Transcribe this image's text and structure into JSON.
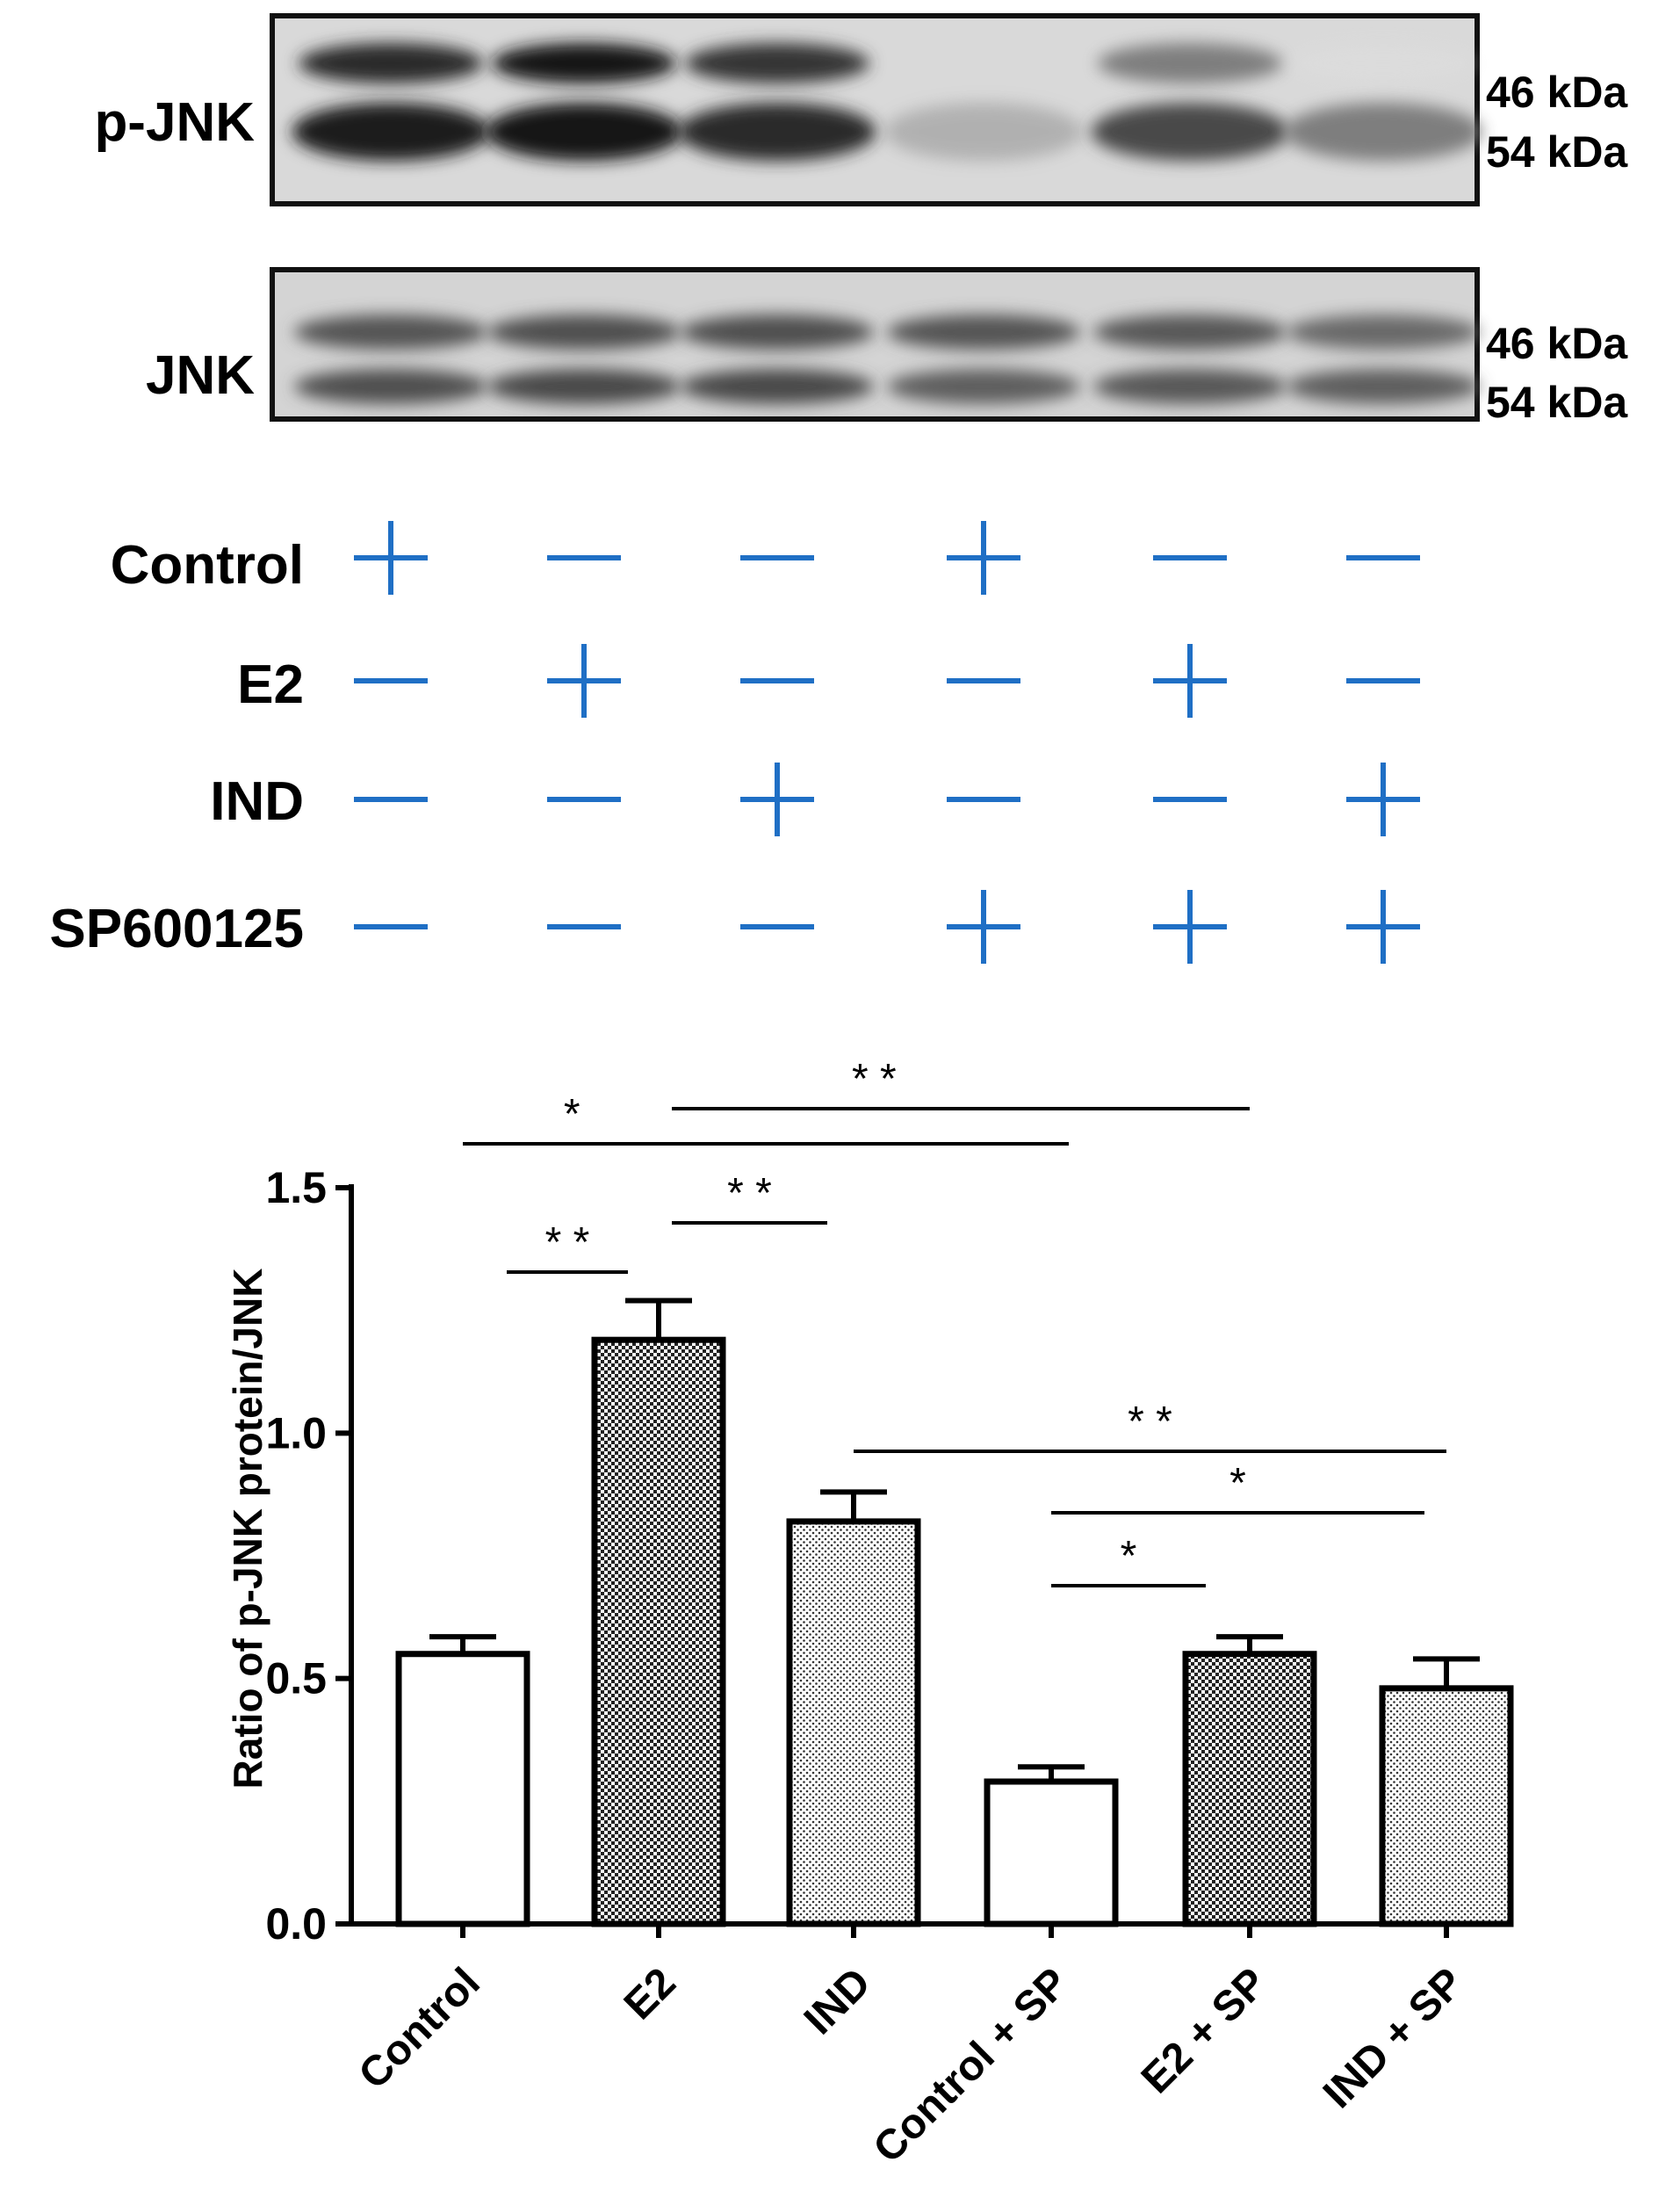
{
  "blot": {
    "panels": [
      {
        "label": "p-JNK",
        "markers": [
          "46 kDa",
          "54 kDa"
        ]
      },
      {
        "label": "JNK",
        "markers": [
          "46 kDa",
          "54 kDa"
        ]
      }
    ],
    "treatments": [
      {
        "label": "Control",
        "signs": [
          "+",
          "−",
          "−",
          "+",
          "−",
          "−"
        ]
      },
      {
        "label": "E2",
        "signs": [
          "−",
          "+",
          "−",
          "−",
          "+",
          "−"
        ]
      },
      {
        "label": "IND",
        "signs": [
          "−",
          "−",
          "+",
          "−",
          "−",
          "+"
        ]
      },
      {
        "label": "SP600125",
        "signs": [
          "−",
          "−",
          "−",
          "+",
          "+",
          "+"
        ]
      }
    ],
    "sign_color": "#1f6fc5",
    "band_intensity": {
      "p_jnk_upper": [
        0.9,
        1.0,
        0.85,
        0.0,
        0.55,
        0.05
      ],
      "p_jnk_lower": [
        0.95,
        1.0,
        0.9,
        0.35,
        0.75,
        0.55
      ],
      "jnk_upper": [
        0.7,
        0.72,
        0.72,
        0.7,
        0.68,
        0.62
      ],
      "jnk_lower": [
        0.72,
        0.75,
        0.75,
        0.65,
        0.68,
        0.65
      ]
    }
  },
  "chart_data": {
    "type": "bar",
    "categories": [
      "Control",
      "E2",
      "IND",
      "Control + SP",
      "E2 + SP",
      "IND + SP"
    ],
    "values": [
      0.55,
      1.19,
      0.82,
      0.29,
      0.55,
      0.48
    ],
    "errors": [
      0.035,
      0.08,
      0.06,
      0.03,
      0.035,
      0.06
    ],
    "patterns": [
      "none",
      "dense",
      "sparse",
      "none",
      "dense",
      "sparse"
    ],
    "ylabel": "Ratio of p-JNK protein/JNK",
    "ylim": [
      0,
      1.5
    ],
    "yticks": [
      0.0,
      0.5,
      1.0,
      1.5
    ],
    "ytick_labels": [
      "0.0",
      "0.5",
      "1.0",
      "1.5"
    ],
    "grid": false,
    "significance": [
      {
        "from": 0,
        "to": 3,
        "label": "*"
      },
      {
        "from": 1,
        "to": 4,
        "label": "* *"
      },
      {
        "from": 1,
        "to": 2,
        "label": "* *"
      },
      {
        "from": 0,
        "to": 1,
        "label": "* *"
      },
      {
        "from": 2,
        "to": 5,
        "label": "* *"
      },
      {
        "from": 3,
        "to": 5,
        "label": "*"
      },
      {
        "from": 3,
        "to": 4,
        "label": "*"
      }
    ]
  }
}
